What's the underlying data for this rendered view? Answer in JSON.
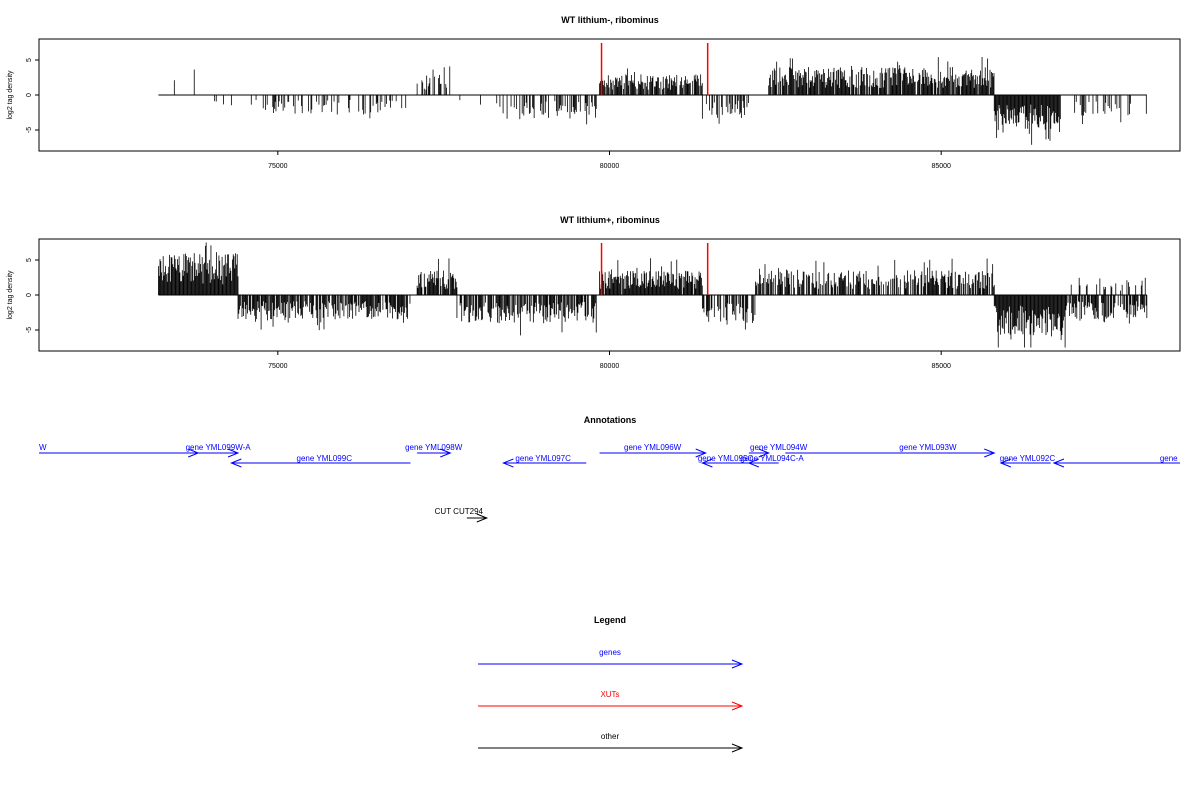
{
  "chart_data": [
    {
      "type": "bar",
      "title": "WT lithium-, ribominus",
      "ylabel": "log2 tag density",
      "xlim": [
        71400,
        88600
      ],
      "ylim": [
        -8,
        8
      ],
      "xticks": [
        "75000",
        "80000",
        "85000"
      ],
      "xtick_values": [
        75000,
        80000,
        85000
      ],
      "yticks": [
        "5",
        "0",
        "-5"
      ],
      "ytick_values": [
        5,
        0,
        -5
      ],
      "baseline_range": [
        73200,
        88100
      ],
      "markers": [
        79880,
        81480
      ],
      "marker_color": "#ff0000",
      "segments": [
        {
          "x0": 73200,
          "x1": 73800,
          "density": 0.12,
          "amp": 3.5,
          "sign": 1
        },
        {
          "x0": 74000,
          "x1": 74600,
          "density": 0.08,
          "amp": 2.0,
          "sign": -1
        },
        {
          "x0": 74600,
          "x1": 77000,
          "density": 0.35,
          "amp": 2.8,
          "sign": -1
        },
        {
          "x0": 77100,
          "x1": 77600,
          "density": 0.5,
          "amp": 3.0,
          "sign": 1
        },
        {
          "x0": 77600,
          "x1": 78300,
          "density": 0.08,
          "amp": 1.5,
          "sign": -1
        },
        {
          "x0": 78300,
          "x1": 79800,
          "density": 0.45,
          "amp": 3.5,
          "sign": -1
        },
        {
          "x0": 79850,
          "x1": 81400,
          "density": 0.85,
          "amp": 3.0,
          "sign": 1
        },
        {
          "x0": 81400,
          "x1": 82100,
          "density": 0.5,
          "amp": 3.0,
          "sign": -1
        },
        {
          "x0": 82400,
          "x1": 85800,
          "density": 0.9,
          "amp": 4.0,
          "sign": 1
        },
        {
          "x0": 85800,
          "x1": 86800,
          "density": 1.0,
          "amp": 5.0,
          "sign": -1
        },
        {
          "x0": 87000,
          "x1": 88100,
          "density": 0.3,
          "amp": 3.0,
          "sign": -1
        }
      ]
    },
    {
      "type": "bar",
      "title": "WT lithium+, ribominus",
      "ylabel": "log2 tag density",
      "xlim": [
        71400,
        88600
      ],
      "ylim": [
        -8,
        8
      ],
      "xticks": [
        "75000",
        "80000",
        "85000"
      ],
      "xtick_values": [
        75000,
        80000,
        85000
      ],
      "yticks": [
        "5",
        "0",
        "-5"
      ],
      "ytick_values": [
        5,
        0,
        -5
      ],
      "baseline_range": [
        73200,
        88100
      ],
      "markers": [
        79880,
        81480
      ],
      "marker_color": "#ff0000",
      "segments": [
        {
          "x0": 73200,
          "x1": 74400,
          "density": 1.0,
          "amp": 6.0,
          "sign": 1
        },
        {
          "x0": 74400,
          "x1": 77000,
          "density": 0.8,
          "amp": 3.5,
          "sign": -1
        },
        {
          "x0": 77100,
          "x1": 77700,
          "density": 0.9,
          "amp": 3.5,
          "sign": 1
        },
        {
          "x0": 77700,
          "x1": 79800,
          "density": 0.8,
          "amp": 4.0,
          "sign": -1
        },
        {
          "x0": 79850,
          "x1": 81400,
          "density": 0.95,
          "amp": 3.5,
          "sign": 1
        },
        {
          "x0": 81400,
          "x1": 82200,
          "density": 0.6,
          "amp": 4.0,
          "sign": -1
        },
        {
          "x0": 82200,
          "x1": 85800,
          "density": 0.7,
          "amp": 3.5,
          "sign": 1
        },
        {
          "x0": 85800,
          "x1": 86900,
          "density": 1.0,
          "amp": 6.0,
          "sign": -1
        },
        {
          "x0": 86900,
          "x1": 88100,
          "density": 0.6,
          "amp": 3.5,
          "sign": -1
        },
        {
          "x0": 86900,
          "x1": 88100,
          "density": 0.3,
          "amp": 2.5,
          "sign": 1
        }
      ]
    }
  ],
  "annotations": {
    "title": "Annotations",
    "genes": [
      {
        "label": "W",
        "x0": 71400,
        "x1": 73800,
        "dir": "right",
        "row": 0,
        "label_at": 71400
      },
      {
        "label": "gene YML099W-A",
        "x0": 73800,
        "x1": 74400,
        "dir": "right",
        "row": 0,
        "label_at": 74100
      },
      {
        "label": "gene YML099C",
        "x0": 74300,
        "x1": 77000,
        "dir": "left",
        "row": 1,
        "label_at": 75700
      },
      {
        "label": "gene YML098W",
        "x0": 77100,
        "x1": 77600,
        "dir": "right",
        "row": 0,
        "label_at": 77350
      },
      {
        "label": "gene YML097C",
        "x0": 78400,
        "x1": 79650,
        "dir": "left",
        "row": 1,
        "label_at": 79000
      },
      {
        "label": "gene YML096W",
        "x0": 79850,
        "x1": 81450,
        "dir": "right",
        "row": 0,
        "label_at": 80650
      },
      {
        "label": "gene YML095C",
        "x0": 81400,
        "x1": 82100,
        "dir": "left",
        "row": 1,
        "label_at": 81750
      },
      {
        "label": "gene YML094W",
        "x0": 82100,
        "x1": 82400,
        "dir": "right",
        "row": 0,
        "label_at": 82550
      },
      {
        "label": "gene YML094C-A",
        "x0": 82100,
        "x1": 82550,
        "dir": "left",
        "row": 1,
        "label_at": 82450
      },
      {
        "label": "gene YML093W",
        "x0": 82650,
        "x1": 85800,
        "dir": "right",
        "row": 0,
        "label_at": 84800
      },
      {
        "label": "gene YML092C",
        "x0": 85900,
        "x1": 86650,
        "dir": "left",
        "row": 1,
        "label_at": 86300
      },
      {
        "label": "gene",
        "x0": 86700,
        "x1": 88600,
        "dir": "left",
        "row": 1,
        "label_at": 88430
      }
    ],
    "other": [
      {
        "label": "CUT CUT294",
        "x0": 77850,
        "x1": 78150,
        "dir": "right",
        "label_at": 78000
      }
    ]
  },
  "legend": {
    "title": "Legend",
    "items": [
      {
        "label": "genes",
        "color": "#0000ff"
      },
      {
        "label": "XUTs",
        "color": "#ff0000"
      },
      {
        "label": "other",
        "color": "#000000"
      }
    ]
  }
}
